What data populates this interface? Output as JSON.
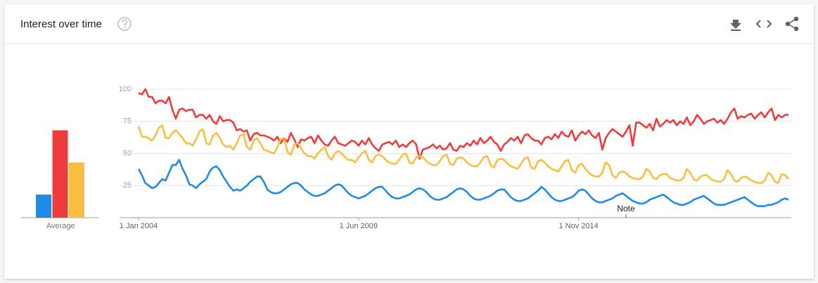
{
  "header": {
    "title": "Interest over time"
  },
  "chart_data": [
    {
      "type": "bar",
      "categories": [
        "Average"
      ],
      "ylim": [
        0,
        100
      ],
      "series": [
        {
          "color": "#1e8be8",
          "values": [
            18
          ]
        },
        {
          "color": "#ef3b3b",
          "values": [
            68
          ]
        },
        {
          "color": "#fbbf3f",
          "values": [
            43
          ]
        }
      ]
    },
    {
      "type": "line",
      "ylim": [
        0,
        100
      ],
      "yticks": [
        25,
        50,
        75,
        100
      ],
      "grid": true,
      "xticks": [
        {
          "value": "2004-01-01",
          "label": "1 Jan 2004"
        },
        {
          "value": "2009-06-01",
          "label": "1 Jun 2009"
        },
        {
          "value": "2014-11-01",
          "label": "1 Nov 2014"
        }
      ],
      "annotations": [
        {
          "x": "2016-01-01",
          "text": "Note"
        }
      ],
      "x": [
        "2004-01-01",
        "2004-02-01",
        "2004-03-01",
        "2004-04-01",
        "2004-05-01",
        "2004-06-01",
        "2004-07-01",
        "2004-08-01",
        "2004-09-01",
        "2004-10-01",
        "2004-11-01",
        "2004-12-01",
        "2005-01-01",
        "2005-02-01",
        "2005-03-01",
        "2005-04-01",
        "2005-05-01",
        "2005-06-01",
        "2005-07-01",
        "2005-08-01",
        "2005-09-01",
        "2005-10-01",
        "2005-11-01",
        "2005-12-01",
        "2006-01-01",
        "2006-02-01",
        "2006-03-01",
        "2006-04-01",
        "2006-05-01",
        "2006-06-01",
        "2006-07-01",
        "2006-08-01",
        "2006-09-01",
        "2006-10-01",
        "2006-11-01",
        "2006-12-01",
        "2007-01-01",
        "2007-02-01",
        "2007-03-01",
        "2007-04-01",
        "2007-05-01",
        "2007-06-01",
        "2007-07-01",
        "2007-08-01",
        "2007-09-01",
        "2007-10-01",
        "2007-11-01",
        "2007-12-01",
        "2008-01-01",
        "2008-02-01",
        "2008-03-01",
        "2008-04-01",
        "2008-05-01",
        "2008-06-01",
        "2008-07-01",
        "2008-08-01",
        "2008-09-01",
        "2008-10-01",
        "2008-11-01",
        "2008-12-01",
        "2009-01-01",
        "2009-02-01",
        "2009-03-01",
        "2009-04-01",
        "2009-05-01",
        "2009-06-01",
        "2009-07-01",
        "2009-08-01",
        "2009-09-01",
        "2009-10-01",
        "2009-11-01",
        "2009-12-01",
        "2010-01-01",
        "2010-02-01",
        "2010-03-01",
        "2010-04-01",
        "2010-05-01",
        "2010-06-01",
        "2010-07-01",
        "2010-08-01",
        "2010-09-01",
        "2010-10-01",
        "2010-11-01",
        "2010-12-01",
        "2011-01-01",
        "2011-02-01",
        "2011-03-01",
        "2011-04-01",
        "2011-05-01",
        "2011-06-01",
        "2011-07-01",
        "2011-08-01",
        "2011-09-01",
        "2011-10-01",
        "2011-11-01",
        "2011-12-01",
        "2012-01-01",
        "2012-02-01",
        "2012-03-01",
        "2012-04-01",
        "2012-05-01",
        "2012-06-01",
        "2012-07-01",
        "2012-08-01",
        "2012-09-01",
        "2012-10-01",
        "2012-11-01",
        "2012-12-01",
        "2013-01-01",
        "2013-02-01",
        "2013-03-01",
        "2013-04-01",
        "2013-05-01",
        "2013-06-01",
        "2013-07-01",
        "2013-08-01",
        "2013-09-01",
        "2013-10-01",
        "2013-11-01",
        "2013-12-01",
        "2014-01-01",
        "2014-02-01",
        "2014-03-01",
        "2014-04-01",
        "2014-05-01",
        "2014-06-01",
        "2014-07-01",
        "2014-08-01",
        "2014-09-01",
        "2014-10-01",
        "2014-11-01",
        "2014-12-01",
        "2015-01-01",
        "2015-02-01",
        "2015-03-01",
        "2015-04-01",
        "2015-05-01",
        "2015-06-01",
        "2015-07-01",
        "2015-08-01",
        "2015-09-01",
        "2015-10-01",
        "2015-11-01",
        "2015-12-01",
        "2016-01-01",
        "2016-02-01",
        "2016-03-01",
        "2016-04-01",
        "2016-05-01",
        "2016-06-01",
        "2016-07-01",
        "2016-08-01",
        "2016-09-01",
        "2016-10-01",
        "2016-11-01",
        "2016-12-01",
        "2017-01-01",
        "2017-02-01",
        "2017-03-01",
        "2017-04-01",
        "2017-05-01",
        "2017-06-01",
        "2017-07-01",
        "2017-08-01",
        "2017-09-01",
        "2017-10-01",
        "2017-11-01",
        "2017-12-01",
        "2018-01-01",
        "2018-02-01",
        "2018-03-01",
        "2018-04-01",
        "2018-05-01",
        "2018-06-01",
        "2018-07-01",
        "2018-08-01",
        "2018-09-01",
        "2018-10-01",
        "2018-11-01",
        "2018-12-01",
        "2019-01-01",
        "2019-02-01",
        "2019-03-01",
        "2019-04-01",
        "2019-05-01",
        "2019-06-01",
        "2019-07-01",
        "2019-08-01",
        "2019-09-01",
        "2019-10-01",
        "2019-11-01",
        "2019-12-01",
        "2020-01-01"
      ],
      "series": [
        {
          "color": "#1e8be8",
          "values": [
            38,
            33,
            27,
            25,
            23,
            24,
            27,
            30,
            29,
            35,
            41,
            41,
            45,
            38,
            33,
            26,
            25,
            23,
            26,
            28,
            30,
            36,
            39,
            40,
            37,
            32,
            28,
            24,
            21,
            22,
            21,
            23,
            25,
            28,
            30,
            32,
            32,
            28,
            22,
            20,
            19,
            19,
            20,
            22,
            24,
            26,
            27,
            27,
            25,
            22,
            20,
            18,
            17,
            17,
            18,
            19,
            21,
            23,
            25,
            26,
            25,
            22,
            19,
            17,
            16,
            15,
            16,
            17,
            19,
            21,
            23,
            24,
            24,
            21,
            18,
            16,
            15,
            15,
            16,
            17,
            18,
            20,
            22,
            23,
            22,
            20,
            17,
            15,
            14,
            14,
            15,
            16,
            18,
            20,
            22,
            23,
            22,
            20,
            17,
            15,
            14,
            14,
            15,
            16,
            17,
            19,
            21,
            22,
            22,
            19,
            16,
            14,
            13,
            13,
            14,
            15,
            17,
            19,
            21,
            24,
            22,
            19,
            16,
            14,
            13,
            13,
            14,
            15,
            16,
            18,
            21,
            22,
            21,
            18,
            15,
            13,
            12,
            12,
            13,
            14,
            15,
            17,
            18,
            19,
            17,
            15,
            13,
            12,
            11,
            11,
            12,
            14,
            15,
            16,
            17,
            18,
            16,
            14,
            12,
            11,
            10,
            10,
            11,
            12,
            14,
            15,
            16,
            17,
            15,
            13,
            11,
            10,
            10,
            10,
            11,
            12,
            13,
            14,
            15,
            16,
            14,
            12,
            10,
            9,
            9,
            9,
            10,
            10,
            11,
            12,
            14,
            15,
            14
          ]
        },
        {
          "color": "#ef3b3b",
          "values": [
            97,
            96,
            100,
            94,
            94,
            89,
            91,
            91,
            89,
            94,
            84,
            77,
            84,
            85,
            83,
            84,
            84,
            78,
            80,
            80,
            77,
            80,
            75,
            73,
            79,
            75,
            76,
            76,
            74,
            68,
            69,
            67,
            68,
            60,
            65,
            66,
            64,
            64,
            63,
            62,
            60,
            63,
            58,
            62,
            59,
            66,
            61,
            55,
            61,
            60,
            62,
            63,
            58,
            64,
            60,
            57,
            56,
            60,
            63,
            58,
            57,
            56,
            58,
            60,
            59,
            56,
            60,
            57,
            62,
            57,
            54,
            52,
            57,
            58,
            59,
            57,
            60,
            55,
            57,
            55,
            58,
            60,
            57,
            46,
            53,
            54,
            55,
            57,
            54,
            56,
            53,
            54,
            58,
            53,
            52,
            56,
            55,
            58,
            56,
            60,
            57,
            62,
            58,
            60,
            63,
            59,
            57,
            52,
            57,
            59,
            62,
            60,
            63,
            58,
            64,
            65,
            62,
            60,
            60,
            57,
            62,
            63,
            61,
            65,
            62,
            67,
            64,
            63,
            68,
            60,
            64,
            67,
            65,
            68,
            64,
            62,
            66,
            53,
            62,
            66,
            69,
            67,
            65,
            63,
            67,
            72,
            56,
            74,
            74,
            72,
            70,
            73,
            68,
            77,
            71,
            73,
            76,
            74,
            76,
            72,
            75,
            73,
            78,
            72,
            75,
            80,
            77,
            73,
            75,
            76,
            77,
            74,
            76,
            73,
            77,
            82,
            85,
            77,
            79,
            78,
            80,
            81,
            77,
            80,
            82,
            78,
            82,
            85,
            76,
            80,
            78,
            80,
            80
          ]
        },
        {
          "color": "#fbbf3f",
          "values": [
            71,
            63,
            63,
            62,
            60,
            64,
            70,
            72,
            62,
            62,
            66,
            68,
            65,
            62,
            58,
            58,
            56,
            61,
            67,
            69,
            58,
            57,
            64,
            66,
            62,
            57,
            55,
            56,
            53,
            58,
            64,
            65,
            55,
            53,
            60,
            62,
            58,
            53,
            52,
            51,
            50,
            55,
            61,
            62,
            51,
            49,
            57,
            58,
            54,
            50,
            48,
            48,
            46,
            50,
            53,
            55,
            48,
            45,
            50,
            52,
            50,
            47,
            45,
            45,
            43,
            47,
            50,
            52,
            45,
            43,
            48,
            49,
            48,
            45,
            43,
            42,
            42,
            45,
            49,
            50,
            43,
            42,
            47,
            48,
            47,
            44,
            42,
            41,
            41,
            44,
            48,
            49,
            42,
            41,
            46,
            47,
            46,
            43,
            41,
            40,
            40,
            43,
            47,
            48,
            41,
            39,
            45,
            46,
            45,
            42,
            40,
            39,
            38,
            42,
            46,
            47,
            39,
            38,
            44,
            45,
            43,
            40,
            38,
            37,
            36,
            40,
            44,
            45,
            37,
            35,
            41,
            42,
            38,
            35,
            33,
            32,
            32,
            35,
            43,
            41,
            33,
            31,
            35,
            36,
            35,
            32,
            31,
            30,
            30,
            32,
            38,
            36,
            31,
            30,
            33,
            34,
            34,
            31,
            30,
            29,
            29,
            31,
            38,
            35,
            30,
            29,
            32,
            33,
            33,
            30,
            29,
            28,
            28,
            30,
            37,
            34,
            29,
            28,
            31,
            32,
            31,
            29,
            28,
            27,
            27,
            29,
            35,
            33,
            28,
            27,
            34,
            33,
            30
          ]
        }
      ]
    }
  ]
}
